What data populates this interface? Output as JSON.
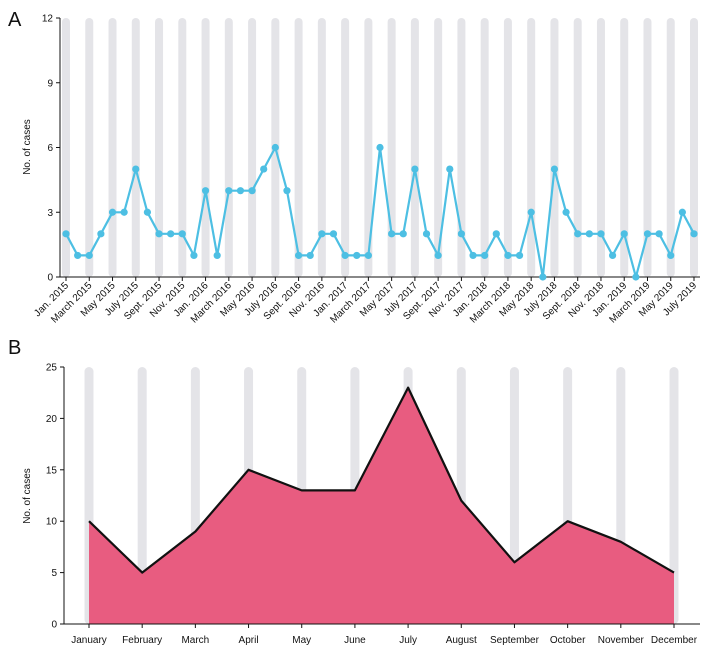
{
  "chart_data": [
    {
      "panel": "A",
      "type": "line",
      "ylabel": "No. of cases",
      "ylim": [
        0,
        12
      ],
      "yticks": [
        0,
        3,
        6,
        9,
        12
      ],
      "color": "#4dbfe3",
      "band_color": "#e4e4e8",
      "values": [
        2,
        1,
        1,
        2,
        3,
        3,
        5,
        3,
        2,
        2,
        2,
        1,
        4,
        1,
        4,
        4,
        4,
        5,
        6,
        4,
        1,
        1,
        2,
        2,
        1,
        1,
        1,
        6,
        2,
        2,
        5,
        2,
        1,
        5,
        2,
        1,
        1,
        2,
        1,
        1,
        3,
        0,
        5,
        3,
        2,
        2,
        2,
        1,
        2,
        0,
        2,
        2,
        1,
        3,
        2
      ],
      "tick_labels": [
        "Jan. 2015",
        "March 2015",
        "May 2015",
        "July 2015",
        "Sept. 2015",
        "Nov. 2015",
        "Jan. 2016",
        "March 2016",
        "May 2016",
        "July 2016",
        "Sept. 2016",
        "Nov. 2016",
        "Jan. 2017",
        "March 2017",
        "May 2017",
        "July 2017",
        "Sept. 2017",
        "Nov. 2017",
        "Jan. 2018",
        "March 2018",
        "May 2018",
        "July 2018",
        "Sept. 2018",
        "Nov. 2018",
        "Jan. 2019",
        "March 2019",
        "May 2019",
        "July 2019"
      ],
      "tick_step": 2
    },
    {
      "panel": "B",
      "type": "area",
      "ylabel": "No. of cases",
      "ylim": [
        0,
        25
      ],
      "yticks": [
        0,
        5,
        10,
        15,
        20,
        25
      ],
      "fill_color": "#e85c80",
      "line_color": "#111111",
      "band_color": "#e4e4e8",
      "categories": [
        "January",
        "February",
        "March",
        "April",
        "May",
        "June",
        "July",
        "August",
        "September",
        "October",
        "November",
        "December"
      ],
      "values": [
        10,
        5,
        9,
        15,
        13,
        13,
        23,
        12,
        6,
        10,
        8,
        5
      ]
    }
  ]
}
